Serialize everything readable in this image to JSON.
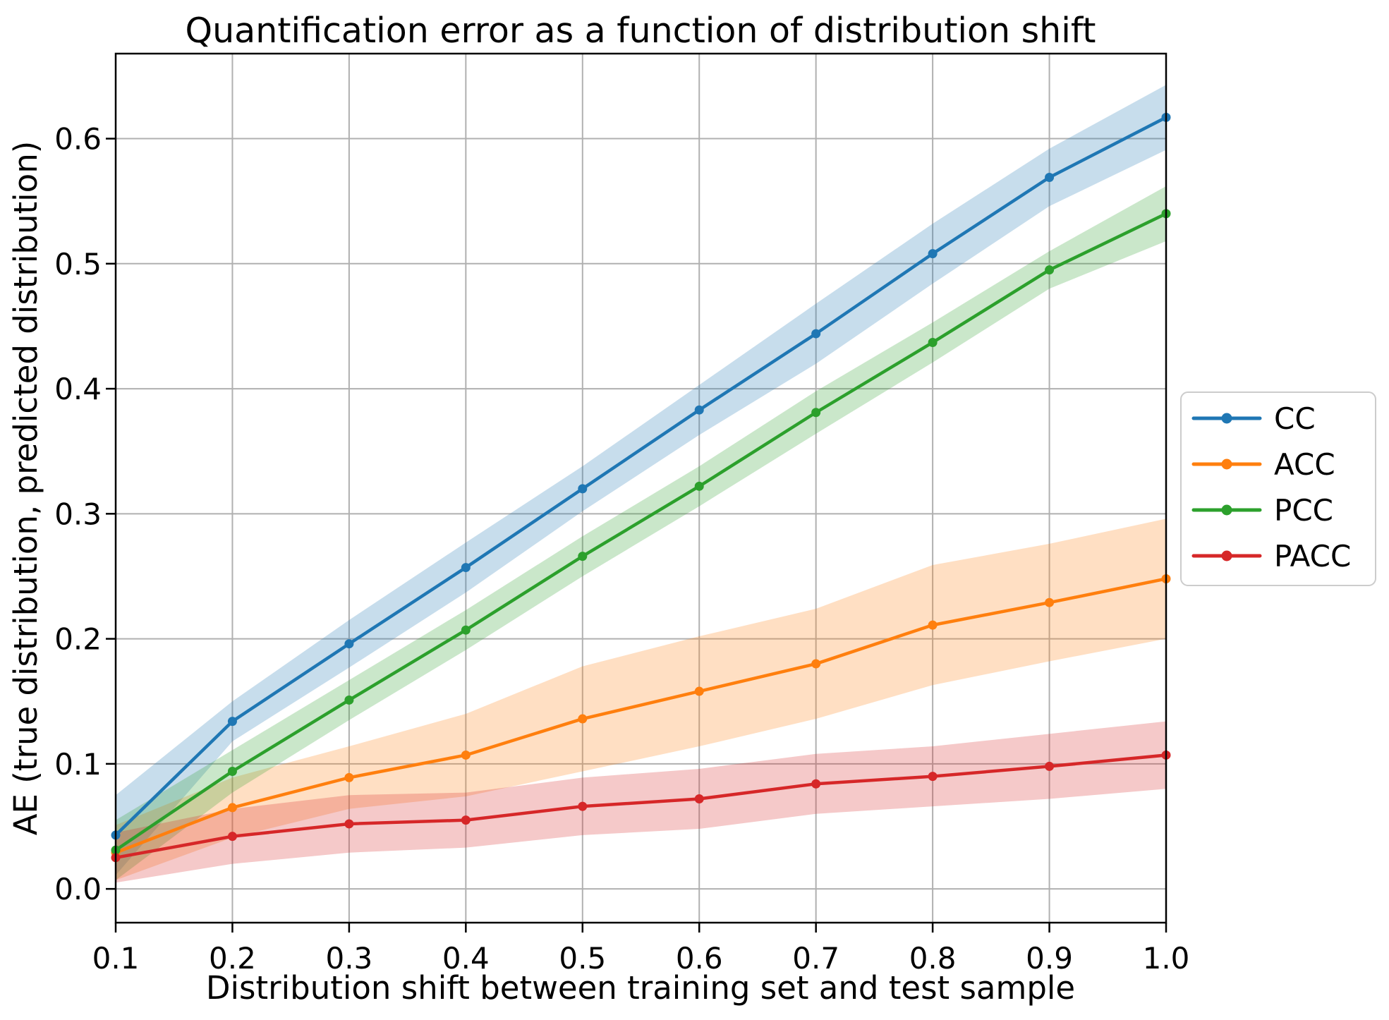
{
  "chart_data": {
    "type": "line",
    "title": "Quantification error as a function of distribution shift",
    "xlabel": "Distribution shift between training set and test sample",
    "ylabel": "AE (true distribution, predicted distribution)",
    "x": [
      0.1,
      0.2,
      0.3,
      0.4,
      0.5,
      0.6,
      0.7,
      0.8,
      0.9,
      1.0
    ],
    "xlim": [
      0.1,
      1.0
    ],
    "ylim": [
      -0.027,
      0.668
    ],
    "xtick_labels": [
      "0.1",
      "0.2",
      "0.3",
      "0.4",
      "0.5",
      "0.6",
      "0.7",
      "0.8",
      "0.9",
      "1.0"
    ],
    "ytick_labels": [
      "0.0",
      "0.1",
      "0.2",
      "0.3",
      "0.4",
      "0.5",
      "0.6"
    ],
    "grid": true,
    "legend_position": "right-outside",
    "series": [
      {
        "name": "CC",
        "color": "#1f77b4",
        "values": [
          0.043,
          0.134,
          0.196,
          0.257,
          0.32,
          0.383,
          0.444,
          0.508,
          0.569,
          0.617
        ],
        "band_halfwidth": [
          0.032,
          0.016,
          0.019,
          0.02,
          0.018,
          0.02,
          0.024,
          0.024,
          0.023,
          0.026
        ]
      },
      {
        "name": "ACC",
        "color": "#ff7f0e",
        "values": [
          0.029,
          0.065,
          0.089,
          0.107,
          0.136,
          0.158,
          0.18,
          0.211,
          0.229,
          0.248
        ],
        "band_halfwidth": [
          0.022,
          0.024,
          0.025,
          0.033,
          0.042,
          0.044,
          0.044,
          0.048,
          0.047,
          0.048
        ]
      },
      {
        "name": "PCC",
        "color": "#2ca02c",
        "values": [
          0.031,
          0.094,
          0.151,
          0.207,
          0.266,
          0.322,
          0.381,
          0.437,
          0.495,
          0.54
        ],
        "band_halfwidth": [
          0.024,
          0.017,
          0.016,
          0.016,
          0.016,
          0.016,
          0.017,
          0.016,
          0.015,
          0.022
        ]
      },
      {
        "name": "PACC",
        "color": "#d62728",
        "values": [
          0.025,
          0.042,
          0.052,
          0.055,
          0.066,
          0.072,
          0.084,
          0.09,
          0.098,
          0.107
        ],
        "band_halfwidth": [
          0.02,
          0.022,
          0.023,
          0.022,
          0.023,
          0.024,
          0.024,
          0.024,
          0.026,
          0.027
        ]
      }
    ],
    "style": {
      "grid_color": "#b0b0b0",
      "spine_color": "#000000",
      "legend_border_color": "#cccccc",
      "background_color": "#ffffff",
      "band_opacity": "0.25"
    }
  }
}
